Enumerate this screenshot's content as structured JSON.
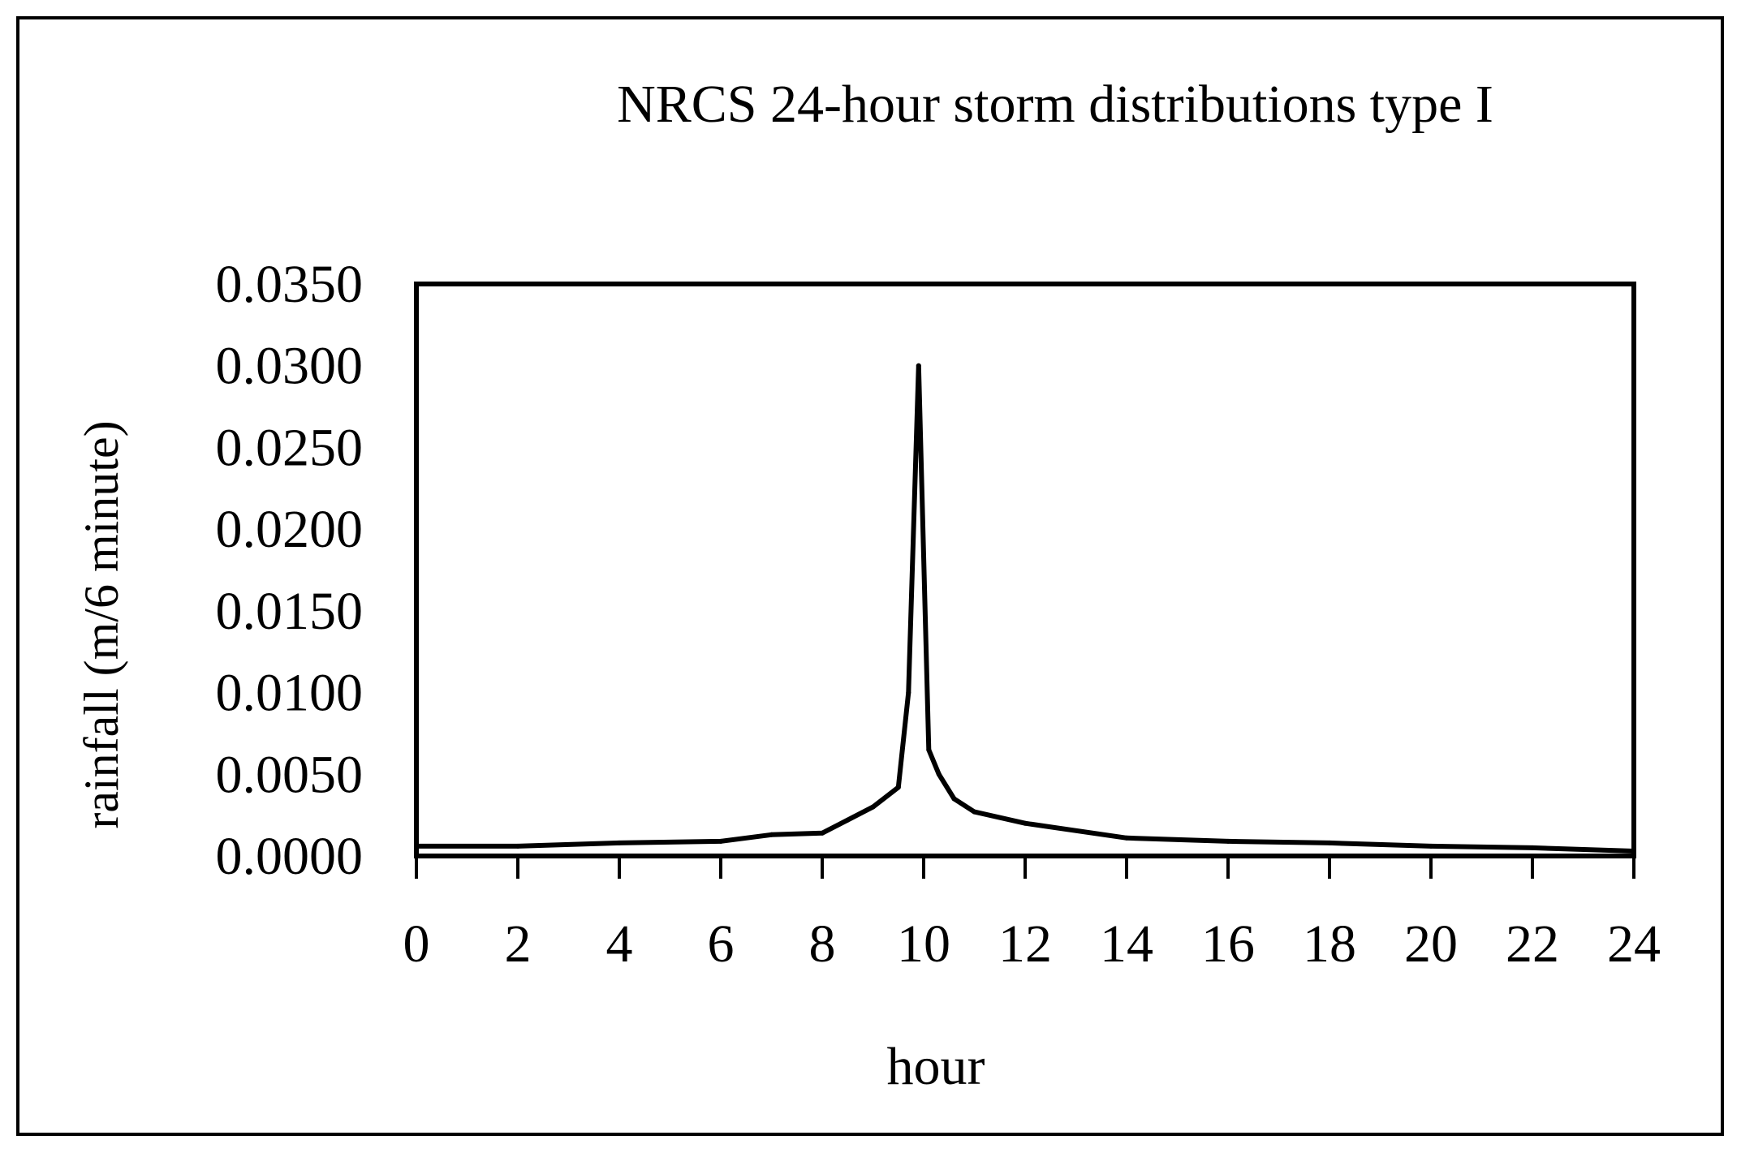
{
  "chart_data": {
    "type": "line",
    "title": "NRCS 24-hour storm distributions type I",
    "xlabel": "hour",
    "ylabel": "rainfall (m/6 minute)",
    "xlim": [
      0,
      24
    ],
    "ylim": [
      0,
      0.035
    ],
    "x_ticks": [
      "0",
      "2",
      "4",
      "6",
      "8",
      "10",
      "12",
      "14",
      "16",
      "18",
      "20",
      "22",
      "24"
    ],
    "y_ticks": [
      "0.0000",
      "0.0050",
      "0.0100",
      "0.0150",
      "0.0200",
      "0.0250",
      "0.0300",
      "0.0350"
    ],
    "grid": false,
    "legend": "none",
    "series": [
      {
        "color": "#000000",
        "x": [
          0,
          2,
          4,
          6,
          7,
          8,
          8.5,
          9,
          9.5,
          9.7,
          9.9,
          10.1,
          10.3,
          10.6,
          11,
          12,
          14,
          16,
          18,
          20,
          22,
          24
        ],
        "y": [
          0.0006,
          0.0006,
          0.0008,
          0.0009,
          0.0013,
          0.0014,
          0.0022,
          0.003,
          0.0042,
          0.01,
          0.03,
          0.0065,
          0.005,
          0.0035,
          0.0027,
          0.002,
          0.0011,
          0.0009,
          0.0008,
          0.0006,
          0.0005,
          0.0003
        ]
      }
    ]
  }
}
